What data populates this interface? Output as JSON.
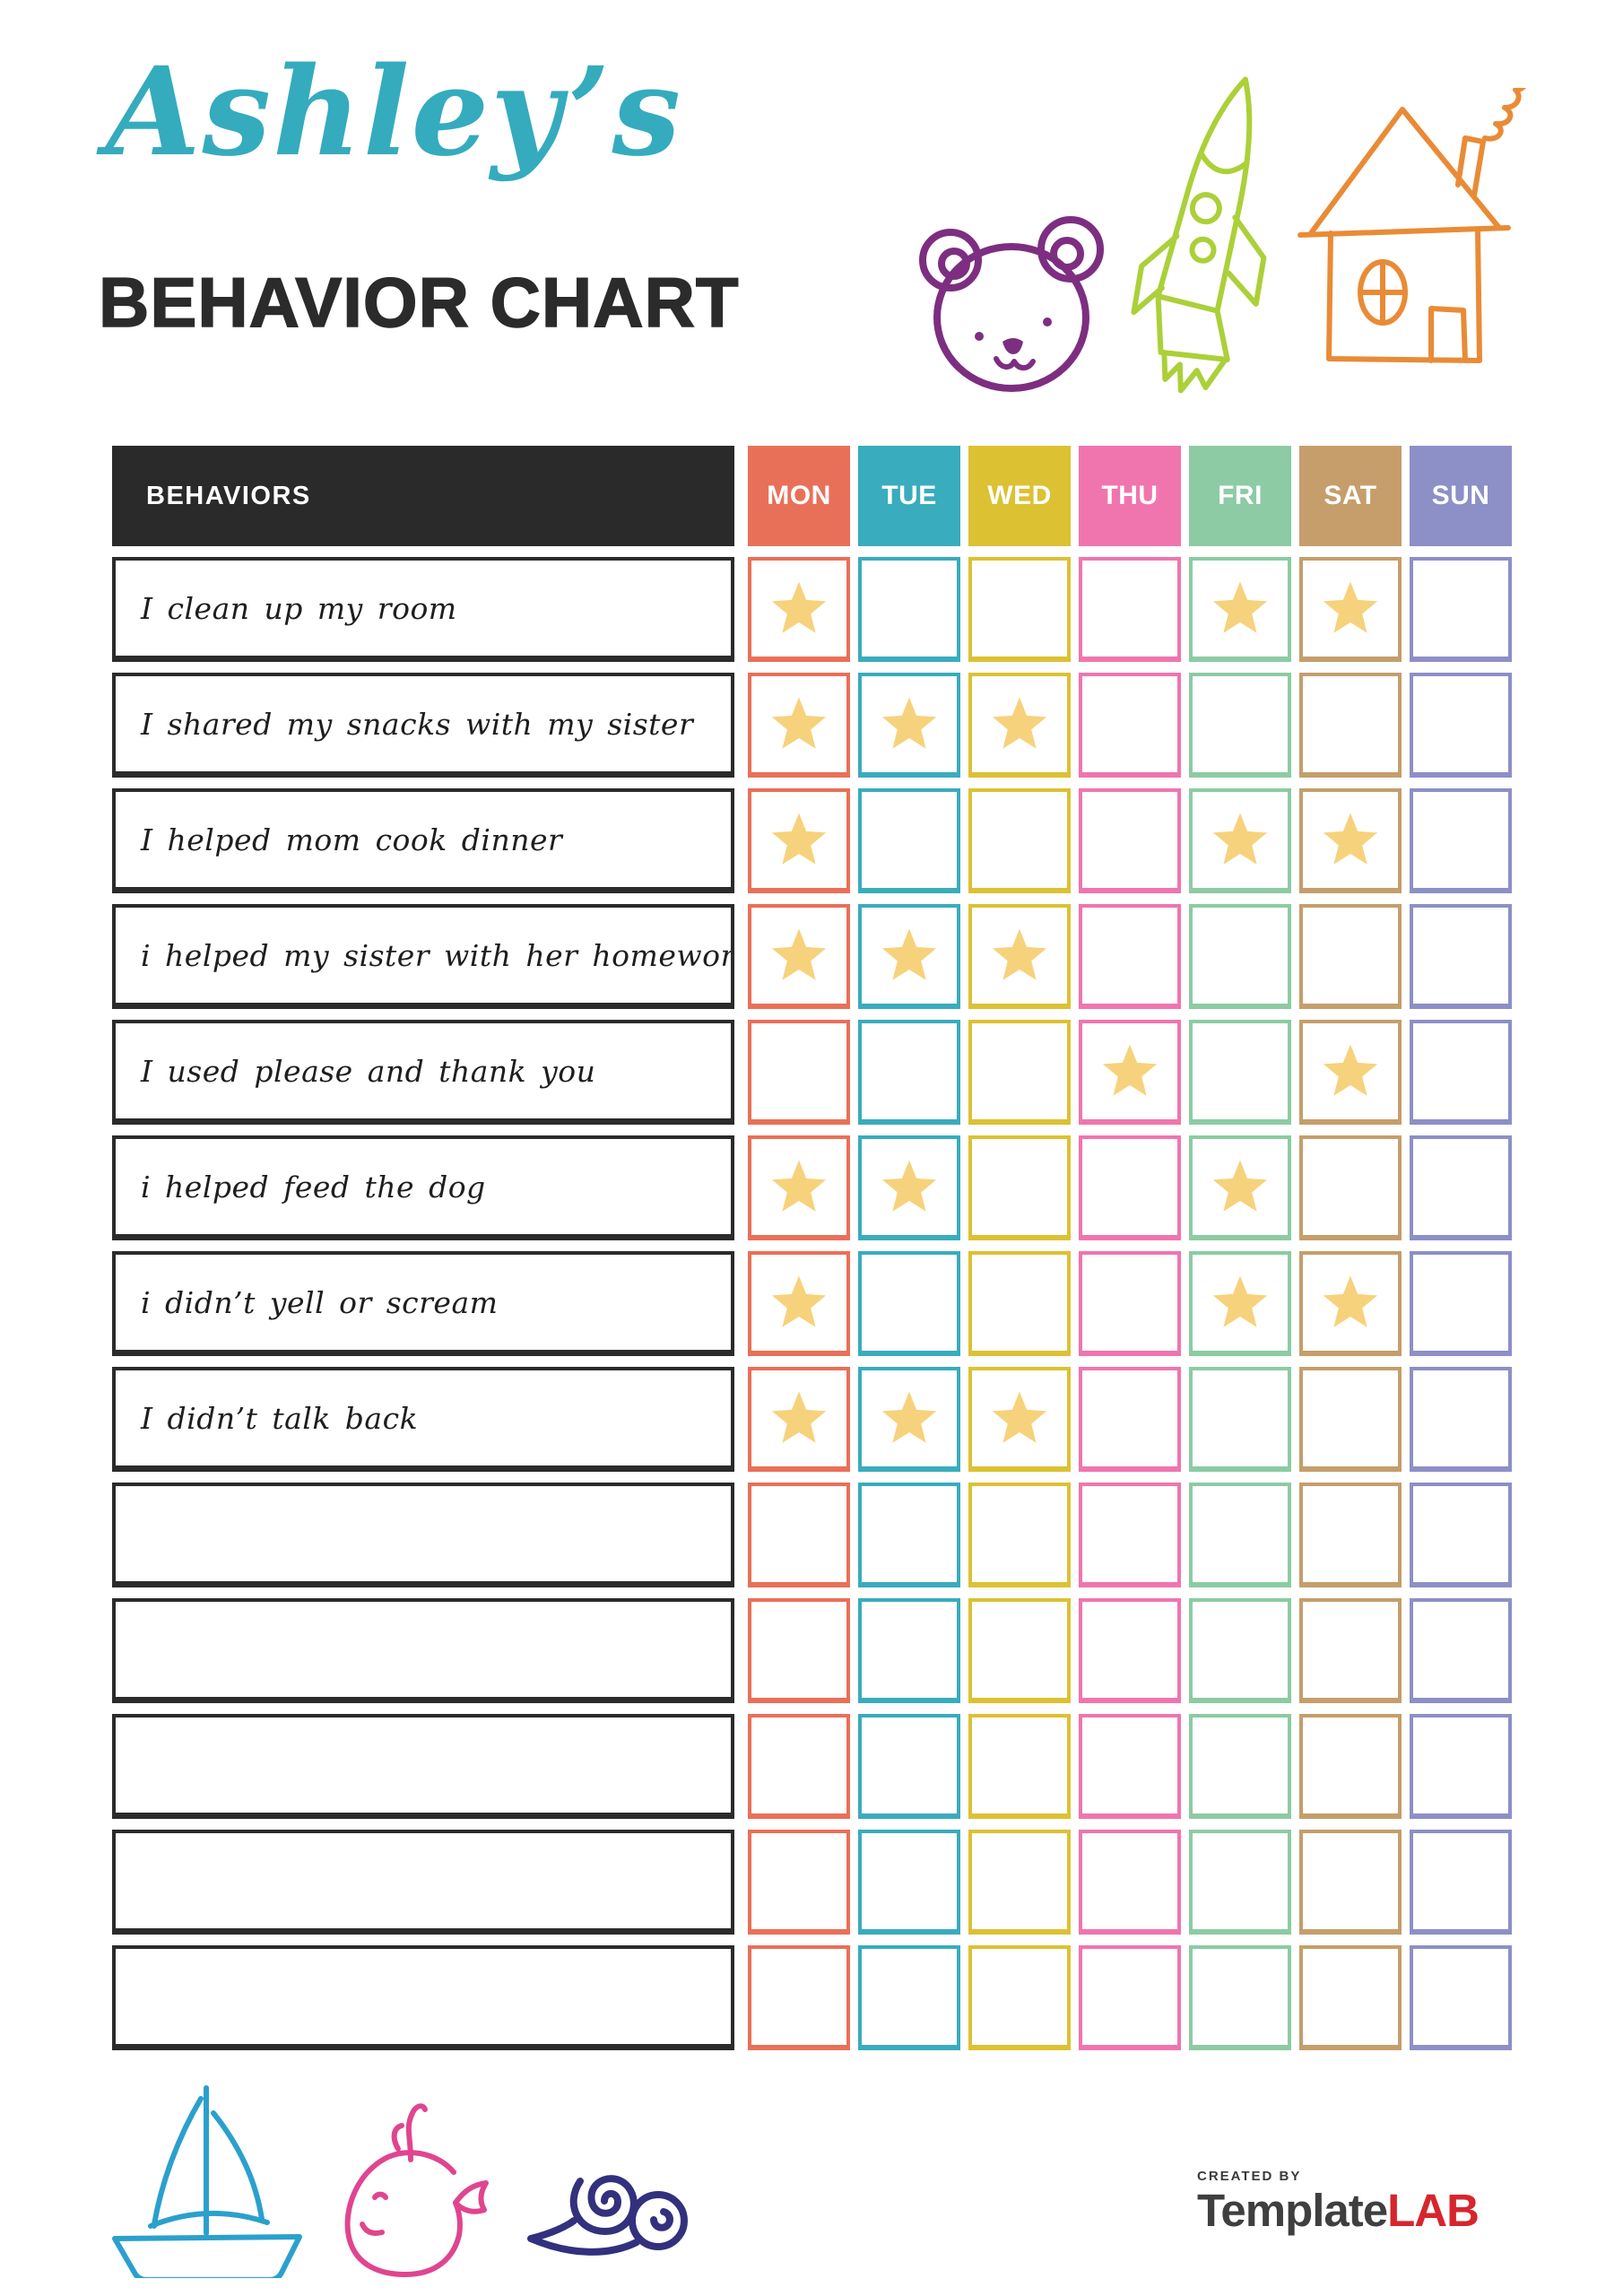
{
  "header": {
    "owner_name": "Ashley’s",
    "title": "BEHAVIOR CHART",
    "doodles": [
      "bear-doodle",
      "rocket-doodle",
      "house-doodle"
    ]
  },
  "table": {
    "behaviors_header": "BEHAVIORS",
    "header_bg": "#2A2A2A",
    "star_color": "#F7D27C",
    "days": [
      {
        "label": "MON",
        "color": "#E97058"
      },
      {
        "label": "TUE",
        "color": "#39ACBD"
      },
      {
        "label": "WED",
        "color": "#DCC133"
      },
      {
        "label": "THU",
        "color": "#F075AE"
      },
      {
        "label": "FRI",
        "color": "#8CCBA3"
      },
      {
        "label": "SAT",
        "color": "#C59E6B"
      },
      {
        "label": "SUN",
        "color": "#8D8FC7"
      }
    ],
    "rows": [
      {
        "behavior": "I clean up my room",
        "stars": [
          "MON",
          "FRI",
          "SAT"
        ]
      },
      {
        "behavior": "I shared my snacks with my sister",
        "stars": [
          "MON",
          "TUE",
          "WED"
        ]
      },
      {
        "behavior": "I helped mom cook dinner",
        "stars": [
          "MON",
          "FRI",
          "SAT"
        ]
      },
      {
        "behavior": "i helped my sister with her homework",
        "stars": [
          "MON",
          "TUE",
          "WED"
        ]
      },
      {
        "behavior": "I used please and thank you",
        "stars": [
          "THU",
          "SAT"
        ]
      },
      {
        "behavior": "i helped feed the dog",
        "stars": [
          "MON",
          "TUE",
          "FRI"
        ]
      },
      {
        "behavior": "i didn’t yell or scream",
        "stars": [
          "MON",
          "FRI",
          "SAT"
        ]
      },
      {
        "behavior": "I didn’t talk back",
        "stars": [
          "MON",
          "TUE",
          "WED"
        ]
      },
      {
        "behavior": "",
        "stars": []
      },
      {
        "behavior": "",
        "stars": []
      },
      {
        "behavior": "",
        "stars": []
      },
      {
        "behavior": "",
        "stars": []
      },
      {
        "behavior": "",
        "stars": []
      }
    ]
  },
  "footer": {
    "created_by": "CREATED BY",
    "brand_name": "Template",
    "brand_suffix": "LAB",
    "doodles": [
      "sailboat-doodle",
      "whale-doodle",
      "snail-doodle"
    ]
  },
  "doodle_colors": {
    "bear": "#7D2E80",
    "rocket": "#ABD039",
    "house": "#E98B36",
    "sailboat": "#2BA0CD",
    "whale": "#E0458F",
    "snail": "#33307E"
  }
}
